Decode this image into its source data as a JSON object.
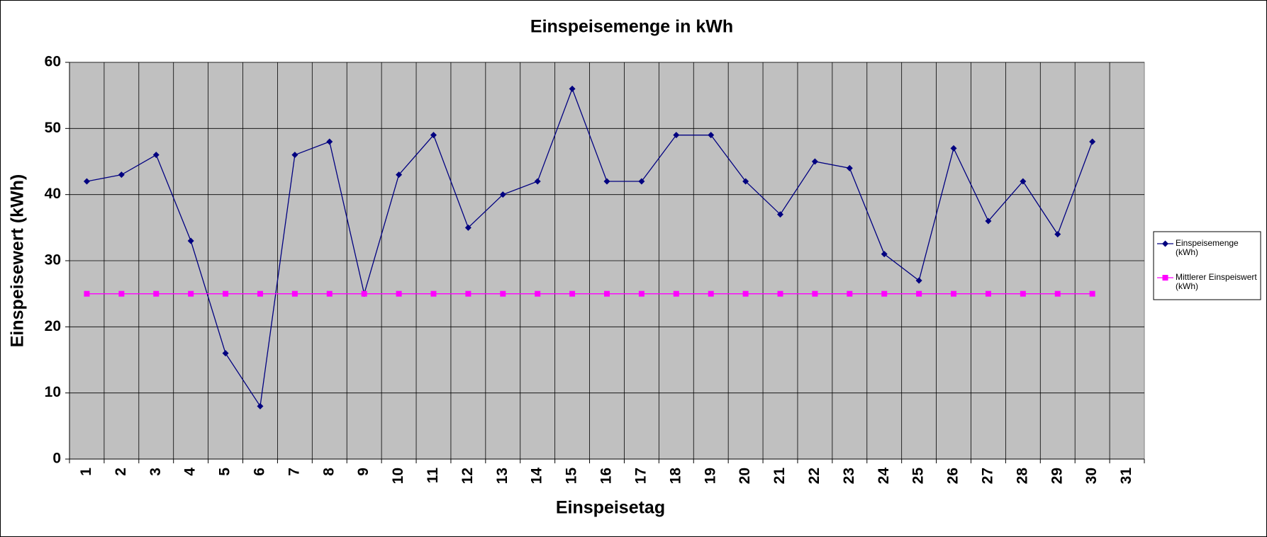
{
  "chart_data": {
    "type": "line",
    "title": "Einspeisemenge in kWh",
    "x_label": "Einspeisetag",
    "y_label": "Einspeisewert  (kWh)",
    "categories": [
      "1",
      "2",
      "3",
      "4",
      "5",
      "6",
      "7",
      "8",
      "9",
      "10",
      "11",
      "12",
      "13",
      "14",
      "15",
      "16",
      "17",
      "18",
      "19",
      "20",
      "21",
      "22",
      "23",
      "24",
      "25",
      "26",
      "27",
      "28",
      "29",
      "30",
      "31"
    ],
    "series": [
      {
        "name": "Einspeisemenge (kWh)",
        "color": "#000080",
        "marker": "diamond",
        "values": [
          42,
          43,
          46,
          33,
          16,
          8,
          46,
          48,
          25,
          43,
          49,
          35,
          40,
          42,
          56,
          42,
          42,
          49,
          49,
          42,
          37,
          45,
          44,
          31,
          27,
          47,
          36,
          42,
          34,
          48,
          null
        ]
      },
      {
        "name": "Mittlerer Einspeiswert (kWh)",
        "color": "#ff00ff",
        "marker": "square",
        "values": [
          25,
          25,
          25,
          25,
          25,
          25,
          25,
          25,
          25,
          25,
          25,
          25,
          25,
          25,
          25,
          25,
          25,
          25,
          25,
          25,
          25,
          25,
          25,
          25,
          25,
          25,
          25,
          25,
          25,
          25,
          null
        ]
      }
    ],
    "ylim": [
      0,
      60
    ],
    "yticks": [
      0,
      10,
      20,
      30,
      40,
      50,
      60
    ],
    "grid": true,
    "legend": "right"
  }
}
